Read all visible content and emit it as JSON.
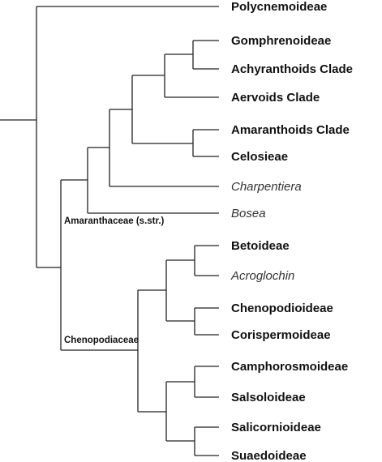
{
  "leaves": [
    "Polycnemoideae",
    "Gomphrenoideae",
    "Achyranthoids Clade",
    "Aervoids Clade",
    "Amaranthoids Clade",
    "Celosieae",
    "Charpentiera",
    "Bosea",
    "Betoideae",
    "Acroglochin",
    "Chenopodioideae",
    "Corispermoideae",
    "Camphorosmoideae",
    "Salsoloideae",
    "Salicornioideae",
    "Suaedoideae"
  ],
  "clade_labels": [
    "Amaranthaceae (s.str.)",
    "Chenopodiaceae"
  ]
}
